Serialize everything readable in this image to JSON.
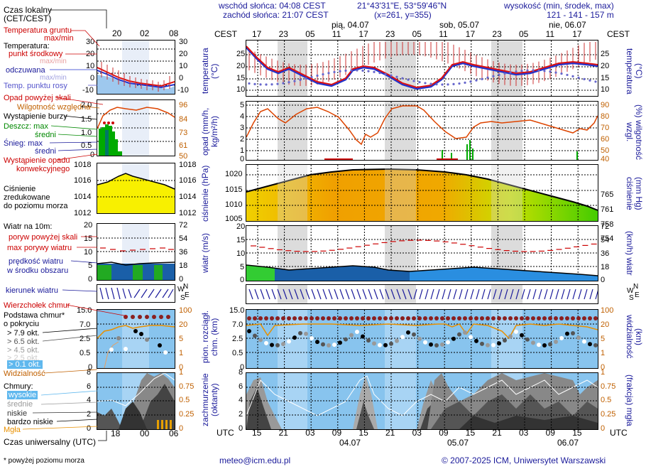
{
  "header": {
    "sunrise": "wschód słońca: 04:08 CEST",
    "sunset": "zachód słońca: 21:07 CEST",
    "coords": "21°43'31\"E, 53°59'46\"N",
    "grid": "(x=261, y=355)",
    "altitude_title": "wysokość (min, środek, max)",
    "altitude_values": "121 - 141 - 157 m"
  },
  "left": {
    "local_time_label": "Czas lokalny",
    "local_time_sub": "(CET/CEST)",
    "local_ticks": [
      "20",
      "02",
      "08"
    ],
    "utc_ticks": [
      "18",
      "00",
      "06"
    ],
    "utc_label": "Czas uniwersalny (UTC)",
    "footnote": "* powyżej poziomu morza",
    "temp": {
      "ground": "Temperatura gruntu",
      "ground_sub": "max/min",
      "temp": "Temperatura:",
      "mid": "punkt środkowy",
      "maxmin": "max/min",
      "feels": "odczuwana",
      "feels_sub": "max/min",
      "dew": "Temp. punktu rosy",
      "ticks": [
        "30",
        "20",
        "10",
        "0",
        "-10"
      ]
    },
    "precip": {
      "above": "Opad powyżej skali",
      "humidity": "Wilgotność względna",
      "storm": "Wystąpienie burzy",
      "rain_max": "Deszcz: max",
      "rain_mid": "średni",
      "snow_max": "Śnieg:  max",
      "snow_mid": "średni",
      "occurrence": "Wystąpienie opadu",
      "occurrence2": "konwekcyjnego",
      "ticks_l": [
        "2.0",
        "1.5",
        "1.0",
        "0.5",
        "0"
      ],
      "ticks_r": [
        "96",
        "84",
        "73",
        "61",
        "50"
      ]
    },
    "pressure": {
      "label1": "Ciśnienie",
      "label2": "zredukowane",
      "label3": "do poziomu morza",
      "ticks": [
        "1018",
        "1016",
        "1014",
        "1012"
      ]
    },
    "wind": {
      "label": "Wiatr na 10m:",
      "gust_above": "poryw powyżej skali",
      "gust_max": "max porywy wiatru",
      "speed": "prędkość wiatru",
      "speed2": "w środku obszaru",
      "ticks_l": [
        "20",
        "15",
        "10",
        "5",
        "0"
      ],
      "ticks_r": [
        "72",
        "54",
        "36",
        "18",
        "0"
      ]
    },
    "direction": "kierunek wiatru",
    "cloud": {
      "top": "Wierzchołek chmur",
      "base": "Podstawa chmur*",
      "base2": "o pokryciu",
      "o79": "> 7.9 okt.",
      "o65": "> 6.5 okt.",
      "o45": "> 4.5 okt.",
      "o25": "> 2.5 okt.",
      "o01": "> 0.1 okt.",
      "visibility": "Widzialność",
      "ticks_l": [
        "15.0",
        "7.0",
        "2.5",
        "0.5",
        "0"
      ],
      "ticks_r": [
        "100",
        "20",
        "5",
        "1",
        "0"
      ]
    },
    "clouds": {
      "label": "Chmury:",
      "high": "wysokie",
      "mid": "średnie",
      "low": "niskie",
      "vlow": "bardzo niskie",
      "fog": "Mgła",
      "ticks_l": [
        "8",
        "6",
        "4",
        "2",
        "0"
      ],
      "ticks_r": [
        "1",
        "0.75",
        "0.5",
        "0.25",
        "0"
      ]
    }
  },
  "main": {
    "cest_label": "CEST",
    "utc_label": "UTC",
    "local_ticks": [
      "17",
      "23",
      "05",
      "11",
      "17",
      "23",
      "05",
      "11",
      "17",
      "23",
      "05",
      "11",
      "17"
    ],
    "utc_ticks": [
      "15",
      "21",
      "03",
      "09",
      "15",
      "21",
      "03",
      "09",
      "15",
      "21",
      "03",
      "09",
      "15"
    ],
    "days_top": [
      "pią, 04.07",
      "sob, 05.07",
      "nie, 06.07"
    ],
    "days_bottom": [
      "04.07",
      "05.07",
      "06.07"
    ],
    "temp": {
      "label_l": "temperatura (°C)",
      "label_r": "(°C) temperatura",
      "ticks": [
        "25",
        "20",
        "15",
        "10"
      ]
    },
    "precip": {
      "label_l": "opad (mm/h, kg/m²/h)",
      "label_r": "(%) wilgotność wzgl.",
      "ticks_l": [
        "5",
        "4",
        "3",
        "2",
        "1",
        "0"
      ],
      "ticks_r": [
        "90",
        "80",
        "70",
        "60",
        "50",
        "40"
      ]
    },
    "pressure": {
      "label_l": "ciśnienie (hPa)",
      "label_r": "(mm Hg) ciśnienie",
      "ticks_l": [
        "1020",
        "1015",
        "1010",
        "1005"
      ],
      "ticks_r": [
        "765",
        "761",
        "758",
        "754"
      ]
    },
    "wind": {
      "label_l": "wiatr (m/s)",
      "label_r": "(km/h) wiatr",
      "ticks_l": [
        "20",
        "15",
        "10",
        "5",
        "0"
      ],
      "ticks_r": [
        "72",
        "54",
        "36",
        "18",
        "0"
      ]
    },
    "direction": {
      "W": "W",
      "S": "S",
      "N": "N",
      "E": "E"
    },
    "cloud": {
      "label_l": "pion. rozciągł. chm. (km)",
      "label_r": "(km) widzialność",
      "ticks_l": [
        "15.0",
        "7.0",
        "2.5",
        "0.5",
        "0"
      ],
      "ticks_r": [
        "100",
        "20",
        "5",
        "1",
        "0"
      ]
    },
    "clouds": {
      "label_l": "zachmurzenie (oktanty)",
      "label_r": "(frakcja) mgła",
      "ticks_l": [
        "8",
        "6",
        "4",
        "2",
        "0"
      ],
      "ticks_r": [
        "1",
        "0.75",
        "0.5",
        "0.25",
        "0"
      ]
    }
  },
  "footer": {
    "email": "meteo@icm.edu.pl",
    "copyright": "© 2007-2025 ICM, Uniwersytet Warszawski"
  },
  "colors": {
    "temp_red": "#dd1111",
    "temp_blue": "#2233cc",
    "humidity": "#dd4400",
    "pressure_fill": "#f0d000",
    "wind_fill": "#1a66c8",
    "cloud_bg": "#88c4ee",
    "night_band": "#dcdcdc"
  }
}
